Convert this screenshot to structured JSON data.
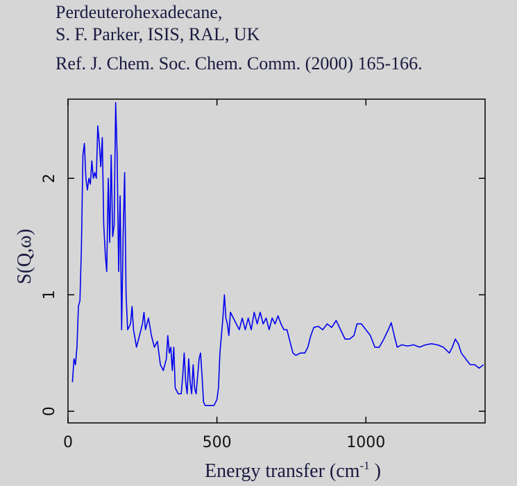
{
  "chart_data": {
    "type": "line",
    "title": [
      "Perdeuterohexadecane,",
      "S. F. Parker, ISIS, RAL, UK",
      "Ref. J. Chem. Soc. Chem. Comm. (2000) 165-166."
    ],
    "xlabel": [
      "Energy transfer (cm",
      "-1",
      " )"
    ],
    "ylabel": "S(Q,ω)",
    "xlim": [
      0,
      1400
    ],
    "xticks": [
      0,
      500,
      1000
    ],
    "ylim": [
      -0.1,
      2.68
    ],
    "yticks": [
      0,
      1,
      2
    ],
    "x": [
      15,
      20,
      25,
      30,
      35,
      40,
      45,
      50,
      55,
      60,
      65,
      70,
      75,
      80,
      85,
      90,
      95,
      100,
      105,
      110,
      115,
      120,
      125,
      130,
      135,
      140,
      145,
      150,
      155,
      160,
      165,
      170,
      175,
      180,
      185,
      190,
      195,
      200,
      210,
      215,
      220,
      230,
      240,
      250,
      255,
      260,
      270,
      280,
      290,
      300,
      310,
      320,
      330,
      335,
      340,
      345,
      350,
      355,
      360,
      370,
      380,
      385,
      390,
      395,
      400,
      405,
      410,
      415,
      420,
      425,
      430,
      440,
      445,
      450,
      455,
      460,
      470,
      480,
      490,
      500,
      505,
      510,
      520,
      525,
      530,
      535,
      540,
      545,
      555,
      565,
      575,
      585,
      595,
      605,
      615,
      625,
      635,
      645,
      655,
      665,
      675,
      685,
      695,
      705,
      715,
      725,
      735,
      745,
      755,
      765,
      780,
      795,
      805,
      815,
      825,
      840,
      855,
      870,
      885,
      900,
      915,
      930,
      945,
      960,
      970,
      985,
      1000,
      1015,
      1030,
      1045,
      1060,
      1075,
      1085,
      1095,
      1105,
      1120,
      1140,
      1160,
      1180,
      1200,
      1220,
      1240,
      1260,
      1280,
      1290,
      1300,
      1310,
      1320,
      1335,
      1350,
      1365,
      1380,
      1395
    ],
    "series": [
      {
        "name": "S(Q,ω)",
        "color": "#0000ee",
        "values": [
          0.25,
          0.45,
          0.4,
          0.55,
          0.9,
          0.95,
          1.4,
          2.2,
          2.3,
          2.0,
          1.9,
          2.0,
          1.95,
          2.15,
          2.0,
          2.05,
          2.0,
          2.45,
          2.3,
          2.1,
          2.35,
          1.6,
          1.35,
          1.2,
          2.0,
          1.45,
          2.2,
          1.5,
          1.6,
          2.65,
          2.2,
          1.2,
          1.85,
          0.7,
          1.5,
          2.05,
          1.0,
          0.7,
          0.75,
          0.9,
          0.7,
          0.55,
          0.65,
          0.75,
          0.85,
          0.7,
          0.8,
          0.65,
          0.55,
          0.6,
          0.4,
          0.35,
          0.45,
          0.65,
          0.5,
          0.55,
          0.35,
          0.55,
          0.2,
          0.15,
          0.15,
          0.3,
          0.5,
          0.25,
          0.15,
          0.45,
          0.25,
          0.15,
          0.4,
          0.2,
          0.15,
          0.45,
          0.5,
          0.3,
          0.08,
          0.05,
          0.05,
          0.05,
          0.05,
          0.1,
          0.2,
          0.5,
          0.8,
          1.0,
          0.8,
          0.75,
          0.65,
          0.85,
          0.8,
          0.75,
          0.7,
          0.8,
          0.7,
          0.8,
          0.7,
          0.85,
          0.75,
          0.85,
          0.75,
          0.8,
          0.7,
          0.8,
          0.75,
          0.82,
          0.75,
          0.7,
          0.7,
          0.6,
          0.5,
          0.48,
          0.5,
          0.5,
          0.55,
          0.65,
          0.72,
          0.73,
          0.7,
          0.75,
          0.72,
          0.78,
          0.7,
          0.62,
          0.62,
          0.65,
          0.75,
          0.75,
          0.7,
          0.65,
          0.55,
          0.55,
          0.62,
          0.7,
          0.76,
          0.65,
          0.55,
          0.57,
          0.56,
          0.57,
          0.55,
          0.57,
          0.58,
          0.57,
          0.55,
          0.5,
          0.55,
          0.62,
          0.58,
          0.5,
          0.45,
          0.4,
          0.4,
          0.37,
          0.4
        ]
      }
    ]
  }
}
